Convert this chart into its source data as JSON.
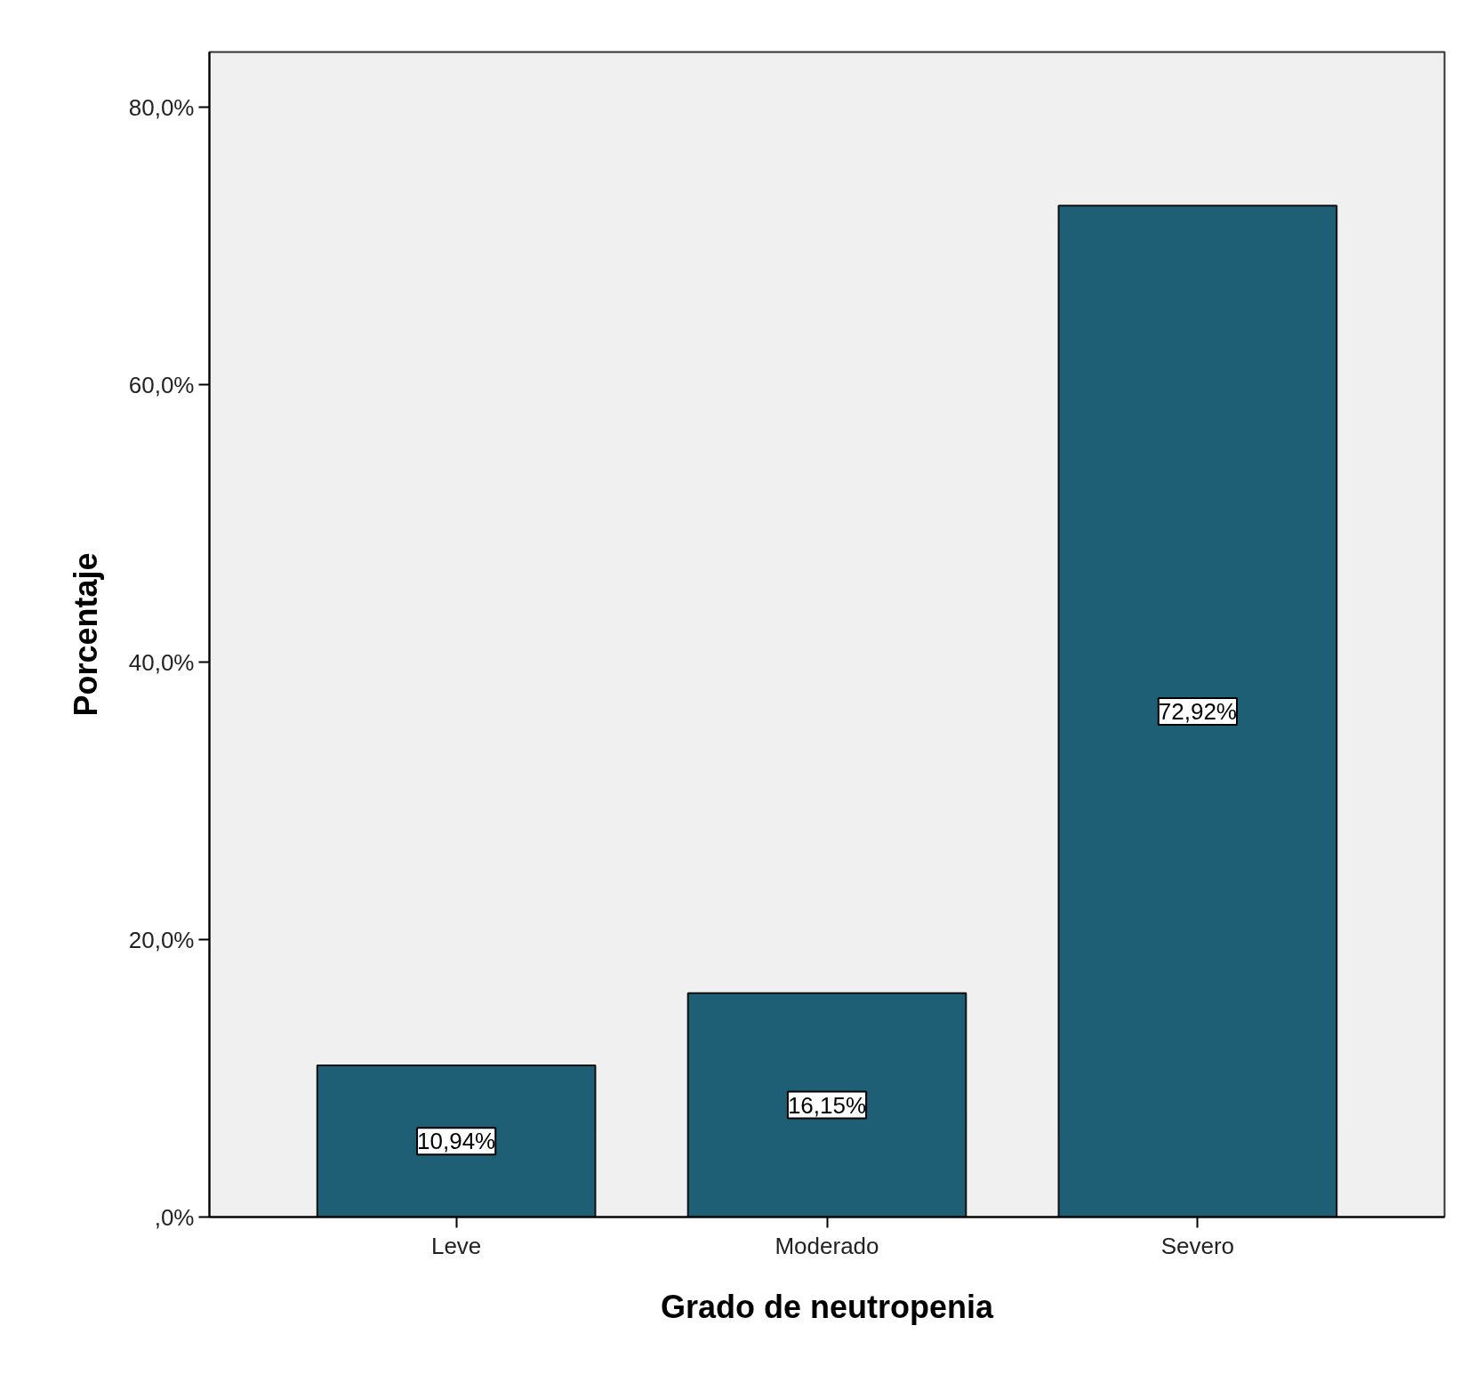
{
  "chart_data": {
    "type": "bar",
    "xlabel": "Grado de neutropenia",
    "ylabel": "Porcentaje",
    "categories": [
      "Leve",
      "Moderado",
      "Severo"
    ],
    "values": [
      10.94,
      16.15,
      72.92
    ],
    "value_labels": [
      "10,94%",
      "16,15%",
      "72,92%"
    ],
    "color": "#1e5f76",
    "ylim": [
      0,
      84
    ],
    "yticks": [
      {
        "value": 0,
        "label": ",0%"
      },
      {
        "value": 20,
        "label": "20,0%"
      },
      {
        "value": 40,
        "label": "40,0%"
      },
      {
        "value": 60,
        "label": "60,0%"
      },
      {
        "value": 80,
        "label": "80,0%"
      }
    ],
    "grid": false
  }
}
